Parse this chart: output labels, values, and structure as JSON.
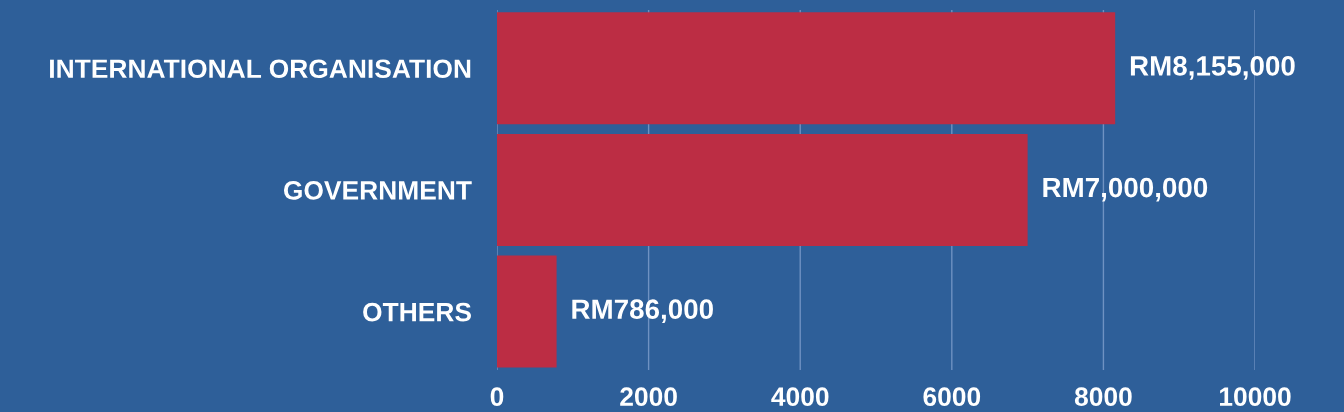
{
  "chart_data": {
    "type": "bar",
    "orientation": "horizontal",
    "categories": [
      "INTERNATIONAL ORGANISATION",
      "GOVERNMENT",
      "OTHERS"
    ],
    "values": [
      8155,
      7000,
      786
    ],
    "color": "#bc2d44",
    "value_labels": [
      "RM8,155,000",
      "RM7,000,000",
      "RM786,000"
    ],
    "xlim": [
      0,
      10000
    ],
    "xticks": [
      0,
      2000,
      4000,
      6000,
      8000,
      10000
    ],
    "grid": "x"
  }
}
